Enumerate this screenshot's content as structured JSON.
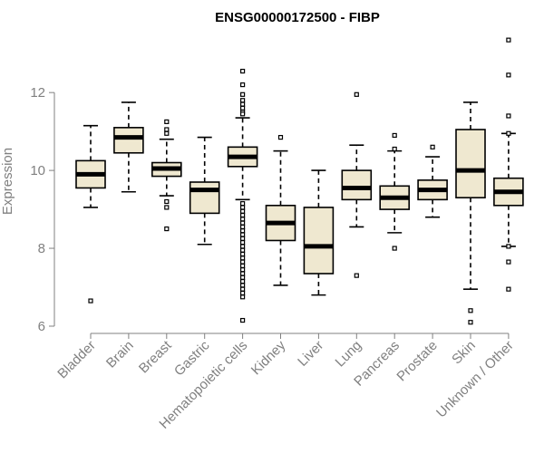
{
  "chart_data": {
    "type": "boxplot",
    "title": "ENSG00000172500 - FIBP",
    "xlabel": "",
    "ylabel": "Expression",
    "ylim": [
      6,
      13.4
    ],
    "yticks": [
      6,
      8,
      10,
      12
    ],
    "box_color": "#efe8d0",
    "categories": [
      "Bladder",
      "Brain",
      "Breast",
      "Gastric",
      "Hematopoietic cells",
      "Kidney",
      "Liver",
      "Lung",
      "Pancreas",
      "Prostate",
      "Skin",
      "Unknown / Other"
    ],
    "boxes": [
      {
        "label": "Bladder",
        "min": 9.05,
        "q1": 9.55,
        "median": 9.9,
        "q3": 10.25,
        "max": 11.15,
        "outliers": [
          6.65
        ]
      },
      {
        "label": "Brain",
        "min": 9.45,
        "q1": 10.45,
        "median": 10.85,
        "q3": 11.1,
        "max": 11.75,
        "outliers": []
      },
      {
        "label": "Breast",
        "min": 9.35,
        "q1": 9.85,
        "median": 10.05,
        "q3": 10.2,
        "max": 10.8,
        "outliers": [
          11.25,
          11.05,
          10.95,
          9.2,
          9.05,
          8.5
        ]
      },
      {
        "label": "Gastric",
        "min": 8.1,
        "q1": 8.9,
        "median": 9.5,
        "q3": 9.7,
        "max": 10.85,
        "outliers": []
      },
      {
        "label": "Hematopoietic cells",
        "min": 9.25,
        "q1": 10.1,
        "median": 10.35,
        "q3": 10.6,
        "max": 11.35,
        "outliers": [
          12.55,
          12.2,
          11.95,
          11.8,
          11.7,
          11.6,
          11.5,
          11.45,
          9.15,
          9.05,
          8.95,
          8.85,
          8.75,
          8.65,
          8.55,
          8.45,
          8.35,
          8.25,
          8.15,
          8.05,
          7.95,
          7.85,
          7.75,
          7.65,
          7.55,
          7.45,
          7.35,
          7.25,
          7.15,
          7.05,
          6.95,
          6.85,
          6.75,
          6.15
        ]
      },
      {
        "label": "Kidney",
        "min": 7.05,
        "q1": 8.2,
        "median": 8.65,
        "q3": 9.1,
        "max": 10.5,
        "outliers": [
          10.85
        ]
      },
      {
        "label": "Liver",
        "min": 6.8,
        "q1": 7.35,
        "median": 8.05,
        "q3": 9.05,
        "max": 10.0,
        "outliers": []
      },
      {
        "label": "Lung",
        "min": 8.55,
        "q1": 9.25,
        "median": 9.55,
        "q3": 10.0,
        "max": 10.65,
        "outliers": [
          11.95,
          7.3
        ]
      },
      {
        "label": "Pancreas",
        "min": 8.4,
        "q1": 9.0,
        "median": 9.3,
        "q3": 9.6,
        "max": 10.5,
        "outliers": [
          10.9,
          10.55,
          8.0
        ]
      },
      {
        "label": "Prostate",
        "min": 8.8,
        "q1": 9.25,
        "median": 9.5,
        "q3": 9.75,
        "max": 10.35,
        "outliers": [
          10.6
        ]
      },
      {
        "label": "Skin",
        "min": 6.95,
        "q1": 9.3,
        "median": 10.0,
        "q3": 11.05,
        "max": 11.75,
        "outliers": [
          6.4,
          6.1
        ]
      },
      {
        "label": "Unknown / Other",
        "min": 8.05,
        "q1": 9.1,
        "median": 9.45,
        "q3": 9.8,
        "max": 10.95,
        "outliers": [
          13.35,
          12.45,
          11.4,
          10.95,
          8.05,
          7.65,
          6.95
        ]
      }
    ]
  }
}
